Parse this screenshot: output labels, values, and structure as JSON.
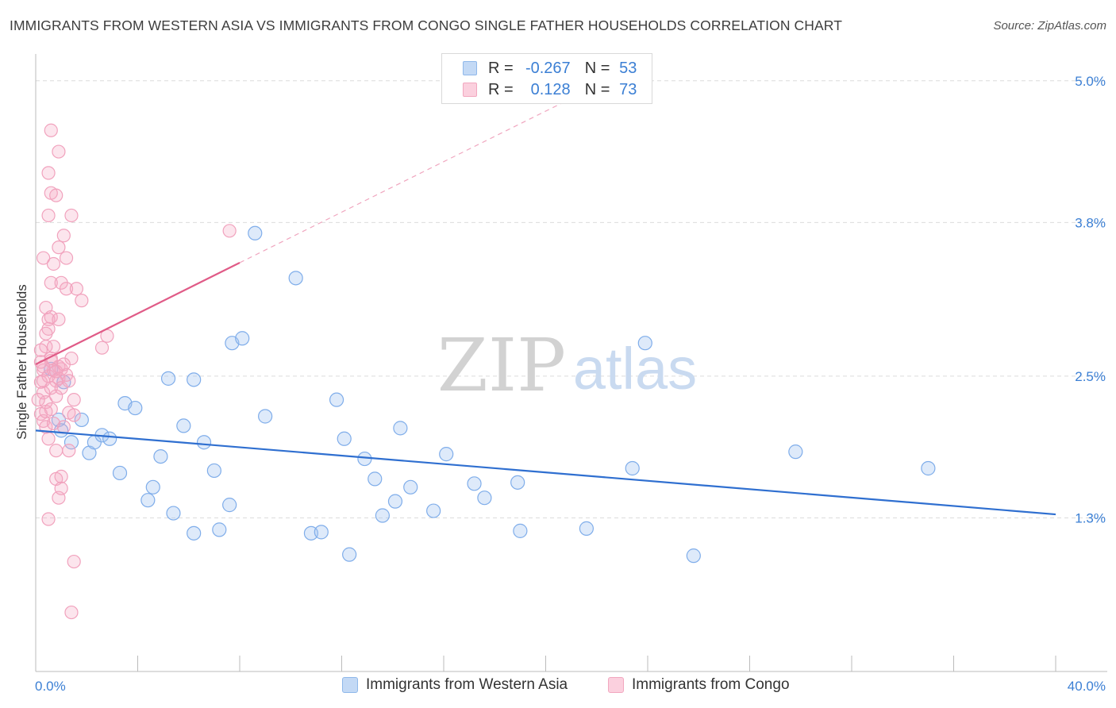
{
  "title": "IMMIGRANTS FROM WESTERN ASIA VS IMMIGRANTS FROM CONGO SINGLE FATHER HOUSEHOLDS CORRELATION CHART",
  "source": "Source: ZipAtlas.com",
  "watermark": {
    "zip": "ZIP",
    "atlas": "atlas"
  },
  "legend": {
    "rows": [
      {
        "r_label": "R =",
        "r_value": "-0.267",
        "n_label": "N =",
        "n_value": "53"
      },
      {
        "r_label": "R =",
        "r_value": "0.128",
        "n_label": "N =",
        "n_value": "73"
      }
    ]
  },
  "chart_data": {
    "type": "scatter",
    "title": "IMMIGRANTS FROM WESTERN ASIA VS IMMIGRANTS FROM CONGO SINGLE FATHER HOUSEHOLDS CORRELATION CHART",
    "xlabel": "",
    "ylabel": "Single Father Households",
    "xlim": [
      0,
      40
    ],
    "ylim": [
      0.0,
      5.2
    ],
    "x_tick_labels": [
      "0.0%",
      "40.0%"
    ],
    "y_ticks": [
      1.3,
      2.5,
      3.8,
      5.0
    ],
    "y_tick_labels": [
      "1.3%",
      "2.5%",
      "3.8%",
      "5.0%"
    ],
    "grid": true,
    "legend_position": "top-center",
    "series": [
      {
        "name": "Immigrants from Western Asia",
        "color": "#8fb8ea",
        "line_color": "#2f6fd0",
        "r": -0.267,
        "n": 53,
        "trend": {
          "x": [
            0.0,
            40.0
          ],
          "y": [
            2.04,
            1.33
          ]
        },
        "points": [
          [
            0.9,
            2.13
          ],
          [
            1.0,
            2.04
          ],
          [
            1.4,
            1.94
          ],
          [
            1.8,
            2.13
          ],
          [
            2.1,
            1.85
          ],
          [
            2.3,
            1.94
          ],
          [
            2.6,
            2.0
          ],
          [
            2.9,
            1.97
          ],
          [
            3.3,
            1.68
          ],
          [
            3.5,
            2.27
          ],
          [
            3.9,
            2.23
          ],
          [
            4.4,
            1.45
          ],
          [
            4.6,
            1.56
          ],
          [
            4.9,
            1.82
          ],
          [
            5.2,
            2.48
          ],
          [
            5.4,
            1.34
          ],
          [
            5.8,
            2.08
          ],
          [
            6.2,
            2.47
          ],
          [
            6.6,
            1.94
          ],
          [
            6.2,
            1.17
          ],
          [
            7.0,
            1.7
          ],
          [
            7.2,
            1.2
          ],
          [
            7.6,
            1.41
          ],
          [
            7.7,
            2.78
          ],
          [
            8.1,
            2.82
          ],
          [
            8.6,
            3.71
          ],
          [
            9.0,
            2.16
          ],
          [
            10.2,
            3.33
          ],
          [
            10.8,
            1.17
          ],
          [
            11.2,
            1.18
          ],
          [
            11.8,
            2.3
          ],
          [
            12.1,
            1.97
          ],
          [
            12.3,
            0.99
          ],
          [
            12.9,
            1.8
          ],
          [
            13.3,
            1.63
          ],
          [
            13.6,
            1.32
          ],
          [
            14.1,
            1.44
          ],
          [
            14.3,
            2.06
          ],
          [
            14.7,
            1.56
          ],
          [
            15.6,
            1.36
          ],
          [
            16.1,
            1.84
          ],
          [
            17.2,
            1.59
          ],
          [
            17.6,
            1.47
          ],
          [
            18.9,
            1.6
          ],
          [
            19.0,
            1.19
          ],
          [
            21.6,
            1.21
          ],
          [
            23.4,
            1.72
          ],
          [
            23.9,
            2.78
          ],
          [
            25.8,
            0.98
          ],
          [
            29.8,
            1.86
          ],
          [
            35.0,
            1.72
          ],
          [
            0.6,
            2.56
          ],
          [
            1.1,
            2.45
          ]
        ]
      },
      {
        "name": "Immigrants from Congo",
        "color": "#f2a7bf",
        "line_color": "#e05b87",
        "r": 0.128,
        "n": 73,
        "trend": {
          "x": [
            0.0,
            8.0
          ],
          "y": [
            2.6,
            3.46
          ]
        },
        "trend_dashed_to": {
          "x": 21.0,
          "y": 4.85
        },
        "points": [
          [
            0.3,
            3.5
          ],
          [
            0.4,
            3.08
          ],
          [
            0.5,
            2.98
          ],
          [
            0.4,
            2.75
          ],
          [
            0.3,
            2.55
          ],
          [
            0.2,
            2.45
          ],
          [
            0.3,
            2.36
          ],
          [
            0.2,
            2.18
          ],
          [
            0.3,
            2.12
          ],
          [
            0.4,
            2.28
          ],
          [
            0.5,
            2.5
          ],
          [
            0.6,
            2.63
          ],
          [
            0.7,
            2.75
          ],
          [
            0.5,
            2.9
          ],
          [
            0.6,
            3.0
          ],
          [
            0.4,
            2.07
          ],
          [
            0.5,
            1.97
          ],
          [
            0.6,
            2.22
          ],
          [
            0.7,
            2.55
          ],
          [
            0.8,
            2.33
          ],
          [
            0.9,
            2.48
          ],
          [
            1.0,
            2.56
          ],
          [
            1.2,
            2.51
          ],
          [
            1.4,
            2.65
          ],
          [
            1.5,
            2.3
          ],
          [
            1.3,
            2.19
          ],
          [
            0.8,
            2.46
          ],
          [
            0.6,
            2.65
          ],
          [
            0.9,
            2.58
          ],
          [
            1.1,
            2.07
          ],
          [
            0.5,
            4.22
          ],
          [
            0.6,
            4.05
          ],
          [
            0.8,
            4.03
          ],
          [
            0.6,
            4.58
          ],
          [
            0.9,
            4.4
          ],
          [
            0.5,
            3.86
          ],
          [
            1.4,
            3.86
          ],
          [
            0.7,
            3.45
          ],
          [
            0.9,
            3.59
          ],
          [
            1.1,
            3.69
          ],
          [
            1.2,
            3.5
          ],
          [
            0.6,
            3.29
          ],
          [
            1.0,
            3.29
          ],
          [
            1.2,
            3.24
          ],
          [
            1.6,
            3.24
          ],
          [
            1.8,
            3.14
          ],
          [
            0.9,
            2.98
          ],
          [
            2.6,
            2.74
          ],
          [
            2.8,
            2.84
          ],
          [
            0.8,
            1.87
          ],
          [
            1.3,
            1.87
          ],
          [
            0.8,
            1.63
          ],
          [
            1.0,
            1.65
          ],
          [
            0.9,
            1.47
          ],
          [
            1.0,
            1.55
          ],
          [
            0.5,
            1.29
          ],
          [
            1.5,
            0.93
          ],
          [
            1.4,
            0.5
          ],
          [
            7.6,
            3.73
          ],
          [
            0.2,
            2.62
          ],
          [
            0.4,
            2.86
          ],
          [
            0.3,
            2.58
          ],
          [
            0.6,
            2.4
          ],
          [
            0.7,
            2.1
          ],
          [
            0.8,
            2.54
          ],
          [
            1.0,
            2.4
          ],
          [
            1.1,
            2.6
          ],
          [
            1.3,
            2.46
          ],
          [
            0.1,
            2.3
          ],
          [
            0.2,
            2.72
          ],
          [
            0.4,
            2.2
          ],
          [
            1.5,
            2.17
          ],
          [
            0.3,
            2.46
          ]
        ]
      }
    ]
  }
}
